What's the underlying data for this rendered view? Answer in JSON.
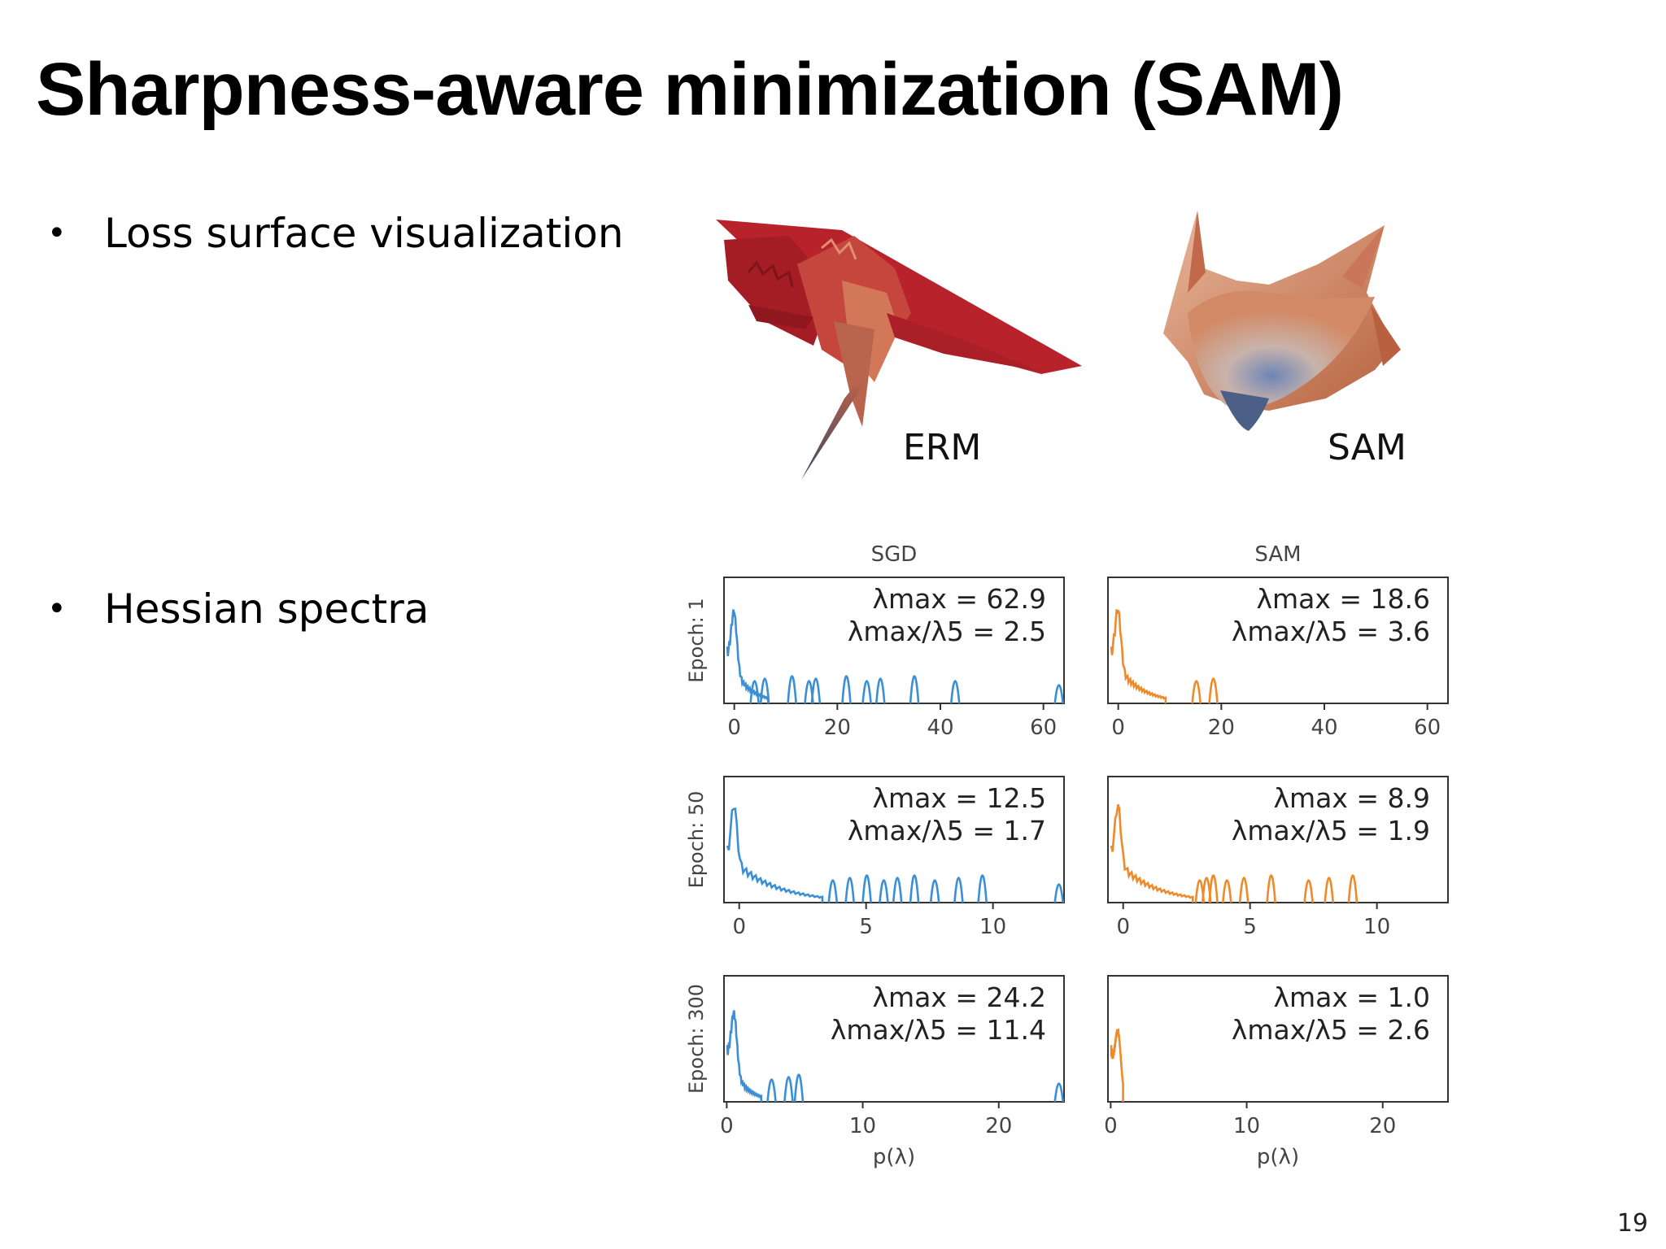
{
  "slide": {
    "title": "Sharpness-aware minimization (SAM)",
    "page_number": "19",
    "bullets": [
      "Loss surface visualization",
      "Hessian spectra"
    ],
    "bullet_glyph": "•"
  },
  "surfaces": {
    "erm_label": "ERM",
    "sam_label": "SAM"
  },
  "spectra": {
    "columns": [
      {
        "title": "SGD",
        "color": "#3a8fd6"
      },
      {
        "title": "SAM",
        "color": "#ee8a2a"
      }
    ],
    "xlabel": "p(λ)",
    "rows": [
      {
        "ylabel": "Epoch: 1",
        "panels": [
          {
            "lambda_max": "62.9",
            "ratio": "2.5",
            "xticks": [
              "0",
              "20",
              "40",
              "60"
            ],
            "xlim": [
              -2,
              64
            ]
          },
          {
            "lambda_max": "18.6",
            "ratio": "3.6",
            "xticks": [
              "0",
              "20",
              "40",
              "60"
            ],
            "xlim": [
              -2,
              64
            ]
          }
        ]
      },
      {
        "ylabel": "Epoch: 50",
        "panels": [
          {
            "lambda_max": "12.5",
            "ratio": "1.7",
            "xticks": [
              "0",
              "5",
              "10"
            ],
            "xlim": [
              -0.6,
              12.8
            ]
          },
          {
            "lambda_max": "8.9",
            "ratio": "1.9",
            "xticks": [
              "0",
              "5",
              "10"
            ],
            "xlim": [
              -0.6,
              12.8
            ]
          }
        ]
      },
      {
        "ylabel": "Epoch: 300",
        "panels": [
          {
            "lambda_max": "24.2",
            "ratio": "11.4",
            "xticks": [
              "0",
              "10",
              "20"
            ],
            "xlim": [
              -0.2,
              24.8
            ]
          },
          {
            "lambda_max": "1.0",
            "ratio": "2.6",
            "xticks": [
              "0",
              "10",
              "20"
            ],
            "xlim": [
              -0.2,
              24.8
            ]
          }
        ]
      }
    ]
  }
}
